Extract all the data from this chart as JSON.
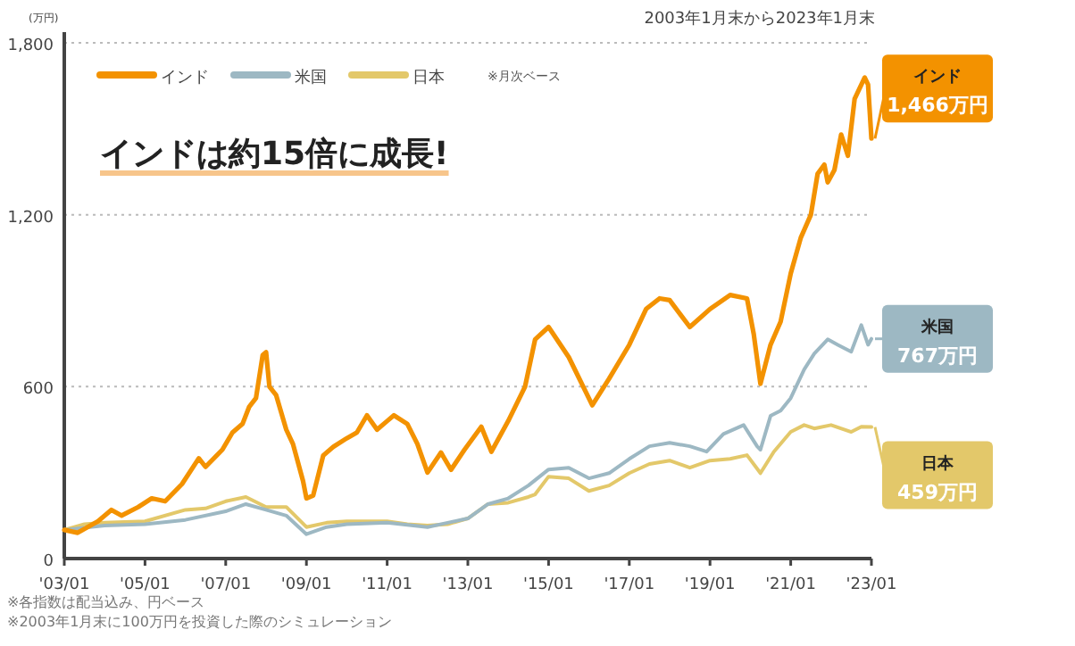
{
  "chart_data": {
    "type": "line",
    "title": "インドは約15倍に成長!",
    "subtitle": "2003年1月末から2023年1月末",
    "ylabel": "(万円)",
    "annotations": [
      "※月次ベース",
      "※各指数は配当込み、円ベース",
      "※2003年1月末に100万円を投資した際のシミュレーション",
      {
        "text": "インド 1,466万円",
        "x": "2023-01",
        "y": 1466
      },
      {
        "text": "米国 767万円",
        "x": "2023-01",
        "y": 767
      },
      {
        "text": "日本 459万円",
        "x": "2023-01",
        "y": 459
      }
    ],
    "xlim": [
      "2003-01",
      "2023-01"
    ],
    "xticks": [
      {
        "value": "2003-01",
        "label": "'03/01"
      },
      {
        "value": "2005-01",
        "label": "'05/01"
      },
      {
        "value": "2007-01",
        "label": "'07/01"
      },
      {
        "value": "2009-01",
        "label": "'09/01"
      },
      {
        "value": "2011-01",
        "label": "'11/01"
      },
      {
        "value": "2013-01",
        "label": "'13/01"
      },
      {
        "value": "2015-01",
        "label": "'15/01"
      },
      {
        "value": "2017-01",
        "label": "'17/01"
      },
      {
        "value": "2019-01",
        "label": "'19/01"
      },
      {
        "value": "2021-01",
        "label": "'21/01"
      },
      {
        "value": "2023-01",
        "label": "'23/01"
      }
    ],
    "ylim": [
      0,
      1800
    ],
    "yticks": [
      0,
      600,
      {
        "value": 1200,
        "label": "1,200"
      },
      {
        "value": 1800,
        "label": "1,800"
      }
    ],
    "grid": "y",
    "legend": "top left",
    "marker": "none",
    "line_style": "solid",
    "series": [
      {
        "name": "インド",
        "color": "#f39200",
        "x": [
          "2003-01",
          "2003-05",
          "2003-11",
          "2004-03",
          "2004-06",
          "2004-11",
          "2005-03",
          "2005-07",
          "2005-12",
          "2006-05",
          "2006-07",
          "2006-12",
          "2007-03",
          "2007-06",
          "2007-08",
          "2007-10",
          "2007-12",
          "2008-01",
          "2008-02",
          "2008-04",
          "2008-07",
          "2008-09",
          "2008-12",
          "2009-01",
          "2009-03",
          "2009-06",
          "2009-09",
          "2010-01",
          "2010-04",
          "2010-07",
          "2010-10",
          "2011-01",
          "2011-03",
          "2011-07",
          "2011-10",
          "2012-01",
          "2012-05",
          "2012-08",
          "2012-12",
          "2013-05",
          "2013-08",
          "2014-01",
          "2014-06",
          "2014-09",
          "2015-01",
          "2015-07",
          "2016-02",
          "2016-07",
          "2017-01",
          "2017-06",
          "2017-10",
          "2018-01",
          "2018-07",
          "2019-01",
          "2019-07",
          "2019-12",
          "2020-02",
          "2020-04",
          "2020-07",
          "2020-10",
          "2021-01",
          "2021-04",
          "2021-07",
          "2021-09",
          "2021-11",
          "2021-12",
          "2022-02",
          "2022-04",
          "2022-06",
          "2022-08",
          "2022-11",
          "2022-12",
          "2023-01"
        ],
        "values": [
          100,
          90,
          130,
          170,
          150,
          180,
          210,
          200,
          260,
          350,
          320,
          380,
          440,
          470,
          530,
          560,
          710,
          720,
          600,
          570,
          450,
          400,
          270,
          210,
          220,
          360,
          390,
          420,
          440,
          500,
          450,
          480,
          500,
          470,
          400,
          300,
          370,
          310,
          380,
          460,
          373,
          480,
          600,
          765,
          808,
          703,
          535,
          628,
          746,
          871,
          908,
          902,
          808,
          871,
          920,
          908,
          784,
          610,
          746,
          827,
          995,
          1120,
          1200,
          1343,
          1375,
          1313,
          1356,
          1480,
          1406,
          1604,
          1679,
          1654,
          1466
        ]
      },
      {
        "name": "米国",
        "color": "#9db8c3",
        "x": [
          "2003-01",
          "2004-01",
          "2005-01",
          "2006-01",
          "2007-01",
          "2007-07",
          "2008-01",
          "2008-07",
          "2009-01",
          "2009-07",
          "2010-01",
          "2011-01",
          "2012-01",
          "2012-07",
          "2013-01",
          "2013-07",
          "2014-01",
          "2014-07",
          "2015-01",
          "2015-07",
          "2016-01",
          "2016-07",
          "2017-01",
          "2017-07",
          "2018-01",
          "2018-07",
          "2018-12",
          "2019-05",
          "2019-11",
          "2020-03",
          "2020-04",
          "2020-07",
          "2020-10",
          "2021-01",
          "2021-05",
          "2021-08",
          "2021-12",
          "2022-03",
          "2022-07",
          "2022-10",
          "2022-12",
          "2023-01"
        ],
        "values": [
          100,
          115,
          120,
          135,
          165,
          190,
          170,
          150,
          85,
          110,
          120,
          125,
          110,
          125,
          140,
          190,
          210,
          255,
          311,
          317,
          280,
          298,
          348,
          392,
          404,
          392,
          373,
          435,
          466,
          392,
          380,
          498,
          516,
          560,
          660,
          715,
          765,
          746,
          722,
          815,
          746,
          767
        ]
      },
      {
        "name": "日本",
        "color": "#e3c86a",
        "x": [
          "2003-01",
          "2003-07",
          "2004-01",
          "2005-01",
          "2006-01",
          "2006-07",
          "2007-01",
          "2007-07",
          "2008-01",
          "2008-07",
          "2009-01",
          "2009-07",
          "2010-01",
          "2011-01",
          "2011-07",
          "2012-01",
          "2012-07",
          "2013-01",
          "2013-07",
          "2014-01",
          "2014-07",
          "2014-09",
          "2015-01",
          "2015-07",
          "2016-01",
          "2016-07",
          "2017-01",
          "2017-07",
          "2018-01",
          "2018-07",
          "2019-01",
          "2019-07",
          "2019-12",
          "2020-04",
          "2020-08",
          "2021-01",
          "2021-05",
          "2021-08",
          "2022-01",
          "2022-07",
          "2022-10",
          "2023-01"
        ],
        "values": [
          100,
          120,
          125,
          130,
          170,
          175,
          200,
          215,
          180,
          180,
          110,
          125,
          130,
          130,
          120,
          115,
          120,
          140,
          190,
          195,
          215,
          224,
          286,
          280,
          236,
          255,
          298,
          330,
          342,
          317,
          342,
          348,
          361,
          298,
          373,
          442,
          466,
          454,
          466,
          442,
          460,
          459
        ]
      }
    ]
  }
}
